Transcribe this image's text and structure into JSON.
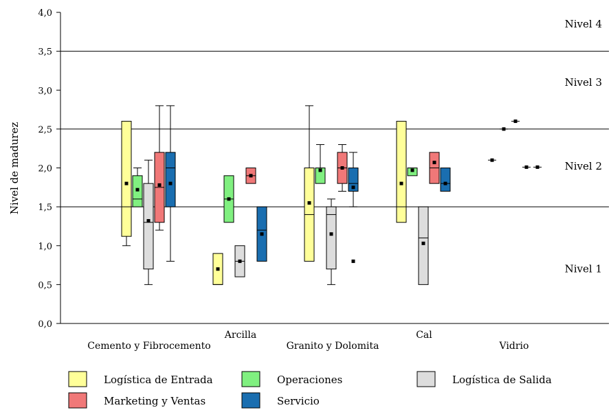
{
  "chart_data": {
    "type": "box",
    "ylabel": "Nivel de madurez",
    "ylim": [
      0,
      4.0
    ],
    "yticks": [
      "0,0",
      "0,5",
      "1,0",
      "1,5",
      "2,0",
      "2,5",
      "3,0",
      "3,5",
      "4,0"
    ],
    "categories": [
      "Cemento y Fibrocemento",
      "Arcilla",
      "Granito y Dolomita",
      "Cal",
      "Vidrio"
    ],
    "reference_lines": [
      1.5,
      2.5,
      3.5
    ],
    "level_labels": [
      {
        "text": "Nivel 4",
        "y": 3.85
      },
      {
        "text": "Nivel 3",
        "y": 3.1
      },
      {
        "text": "Nivel 2",
        "y": 2.02
      },
      {
        "text": "Nivel 1",
        "y": 0.7
      }
    ],
    "legend": [
      {
        "name": "Logística de Entrada",
        "color": "#ffff99"
      },
      {
        "name": "Operaciones",
        "color": "#80f080"
      },
      {
        "name": "Logística de Salida",
        "color": "#dddddd"
      },
      {
        "name": "Marketing y Ventas",
        "color": "#f07878"
      },
      {
        "name": "Servicio",
        "color": "#1a6eb0"
      }
    ],
    "series": [
      {
        "name": "Logística de Entrada",
        "color": "#ffff99",
        "boxes": [
          {
            "category": "Cemento y Fibrocemento",
            "min": 1.0,
            "q1": 1.12,
            "median": 1.5,
            "q3": 2.6,
            "max": 2.6,
            "mean": 1.8
          },
          {
            "category": "Arcilla",
            "min": 0.5,
            "q1": 0.5,
            "median": 0.5,
            "q3": 0.9,
            "max": 0.9,
            "mean": 0.7
          },
          {
            "category": "Granito y Dolomita",
            "min": 0.8,
            "q1": 0.8,
            "median": 1.4,
            "q3": 2.0,
            "max": 2.8,
            "mean": 1.55
          },
          {
            "category": "Cal",
            "min": 1.3,
            "q1": 1.3,
            "median": 1.5,
            "q3": 2.6,
            "max": 2.6,
            "mean": 1.8
          },
          {
            "category": "Vidrio",
            "mean": 2.1
          }
        ]
      },
      {
        "name": "Operaciones",
        "color": "#80f080",
        "boxes": [
          {
            "category": "Cemento y Fibrocemento",
            "min": 1.5,
            "q1": 1.5,
            "median": 1.6,
            "q3": 1.9,
            "max": 2.0,
            "mean": 1.72
          },
          {
            "category": "Arcilla",
            "min": 1.3,
            "q1": 1.3,
            "median": 1.6,
            "q3": 1.9,
            "max": 1.9,
            "mean": 1.6
          },
          {
            "category": "Granito y Dolomita",
            "min": 1.8,
            "q1": 1.8,
            "median": 2.0,
            "q3": 2.0,
            "max": 2.3,
            "mean": 1.97
          },
          {
            "category": "Cal",
            "min": 1.9,
            "q1": 1.9,
            "median": 2.0,
            "q3": 2.0,
            "max": 2.0,
            "mean": 1.97
          },
          {
            "category": "Vidrio",
            "mean": 2.5
          }
        ]
      },
      {
        "name": "Logística de Salida",
        "color": "#dddddd",
        "boxes": [
          {
            "category": "Cemento y Fibrocemento",
            "min": 0.5,
            "q1": 0.7,
            "median": 1.3,
            "q3": 1.8,
            "max": 2.1,
            "mean": 1.32
          },
          {
            "category": "Arcilla",
            "min": 0.6,
            "q1": 0.6,
            "median": 0.8,
            "q3": 1.0,
            "max": 1.0,
            "mean": 0.8
          },
          {
            "category": "Granito y Dolomita",
            "min": 0.5,
            "q1": 0.7,
            "median": 1.4,
            "q3": 1.5,
            "max": 1.6,
            "mean": 1.15
          },
          {
            "category": "Cal",
            "min": 0.5,
            "q1": 0.5,
            "median": 1.1,
            "q3": 1.5,
            "max": 1.5,
            "mean": 1.03
          },
          {
            "category": "Vidrio",
            "mean": 2.6
          }
        ]
      },
      {
        "name": "Marketing y Ventas",
        "color": "#f07878",
        "boxes": [
          {
            "category": "Cemento y Fibrocemento",
            "min": 1.2,
            "q1": 1.3,
            "median": 1.75,
            "q3": 2.2,
            "max": 2.8,
            "mean": 1.78
          },
          {
            "category": "Arcilla",
            "min": 1.8,
            "q1": 1.8,
            "median": 1.9,
            "q3": 2.0,
            "max": 2.0,
            "mean": 1.9
          },
          {
            "category": "Granito y Dolomita",
            "min": 1.7,
            "q1": 1.8,
            "median": 2.0,
            "q3": 2.2,
            "max": 2.3,
            "mean": 2.0
          },
          {
            "category": "Cal",
            "min": 1.8,
            "q1": 1.8,
            "median": 2.0,
            "q3": 2.2,
            "max": 2.2,
            "mean": 2.07
          },
          {
            "category": "Vidrio",
            "mean": 2.01
          }
        ]
      },
      {
        "name": "Servicio",
        "color": "#1a6eb0",
        "boxes": [
          {
            "category": "Cemento y Fibrocemento",
            "min": 0.8,
            "q1": 1.5,
            "median": 2.0,
            "q3": 2.2,
            "max": 2.8,
            "mean": 1.8
          },
          {
            "category": "Arcilla",
            "min": 0.8,
            "q1": 0.8,
            "median": 1.2,
            "q3": 1.5,
            "max": 1.5,
            "mean": 1.15
          },
          {
            "category": "Granito y Dolomita",
            "min": 1.5,
            "q1": 1.7,
            "median": 1.8,
            "q3": 2.0,
            "max": 2.2,
            "mean": 1.75,
            "outliers": [
              0.8
            ]
          },
          {
            "category": "Cal",
            "min": 1.7,
            "q1": 1.7,
            "median": 1.8,
            "q3": 2.0,
            "max": 2.0,
            "mean": 1.8
          },
          {
            "category": "Vidrio",
            "mean": 2.01
          }
        ]
      }
    ]
  }
}
